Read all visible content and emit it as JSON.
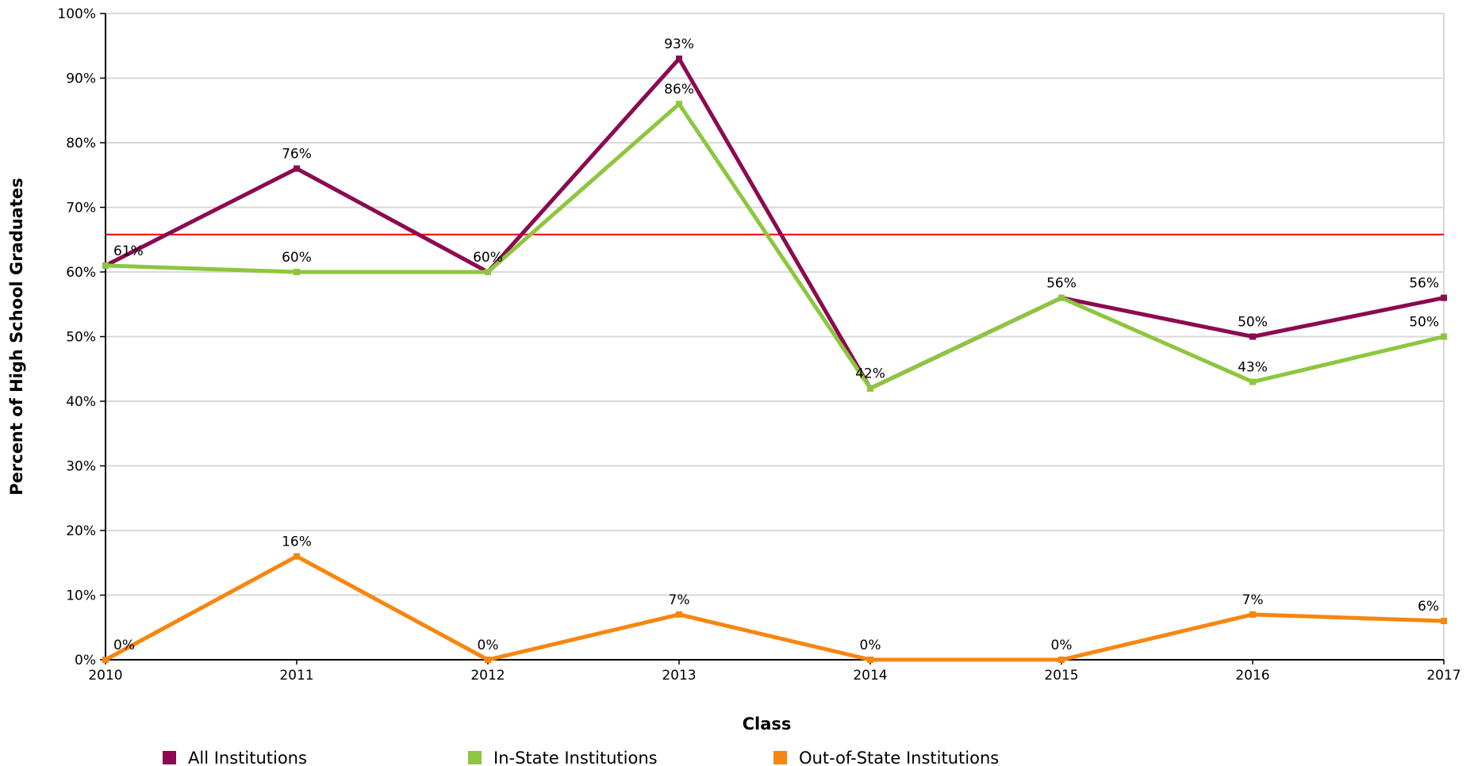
{
  "chart_data": {
    "type": "line",
    "title": "",
    "xlabel": "Class",
    "ylabel": "Percent of High School Graduates",
    "categories": [
      "2010",
      "2011",
      "2012",
      "2013",
      "2014",
      "2015",
      "2016",
      "2017"
    ],
    "ylim": [
      0,
      100
    ],
    "yticks": [
      "0%",
      "10%",
      "20%",
      "30%",
      "40%",
      "50%",
      "60%",
      "70%",
      "80%",
      "90%",
      "100%"
    ],
    "grid": true,
    "legend_position": "bottom",
    "reference_line": {
      "value": 65.8,
      "color": "#ff0000"
    },
    "series": [
      {
        "name": "All Institutions",
        "color": "#8b0a50",
        "values": [
          61,
          76,
          60,
          93,
          42,
          56,
          50,
          56
        ],
        "labels": [
          "61%",
          "76%",
          "60%",
          "93%",
          "42%",
          "56%",
          "50%",
          "56%"
        ]
      },
      {
        "name": "In-State Institutions",
        "color": "#8dc63f",
        "values": [
          61,
          60,
          60,
          86,
          42,
          56,
          43,
          50
        ],
        "labels": [
          "",
          "60%",
          "",
          "86%",
          "",
          "",
          "43%",
          "50%"
        ]
      },
      {
        "name": "Out-of-State Institutions",
        "color": "#f7860f",
        "values": [
          0,
          16,
          0,
          7,
          0,
          0,
          7,
          6
        ],
        "labels": [
          "0%",
          "16%",
          "0%",
          "7%",
          "0%",
          "0%",
          "7%",
          "6%"
        ]
      }
    ]
  }
}
